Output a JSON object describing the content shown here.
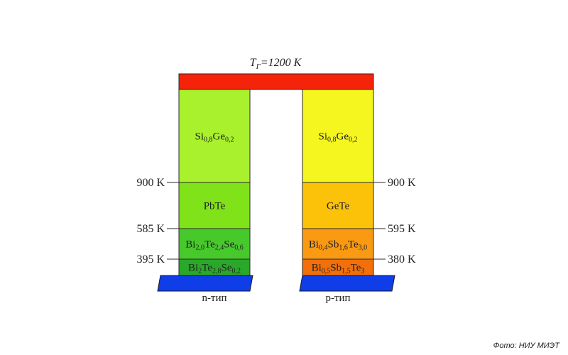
{
  "title": {
    "main": "T",
    "sub": "Г",
    "rest": "=1200 K"
  },
  "hot_junction": {
    "color": "#f5230a"
  },
  "base": {
    "color": "#0f3de8"
  },
  "n_leg": {
    "label": "n-тип",
    "segments": [
      {
        "color": "#a8f12c",
        "parts": [
          [
            "Si",
            ""
          ],
          [
            "0,8",
            "sub"
          ],
          [
            "Ge",
            ""
          ],
          [
            "0,2",
            "sub"
          ]
        ]
      },
      {
        "color": "#80e218",
        "parts": [
          [
            "PbTe",
            ""
          ]
        ]
      },
      {
        "color": "#47c92c",
        "parts": [
          [
            "Bi",
            ""
          ],
          [
            "2,0",
            "sub"
          ],
          [
            "Te",
            ""
          ],
          [
            "2,4",
            "sub"
          ],
          [
            "Se",
            ""
          ],
          [
            "0,6",
            "sub"
          ]
        ]
      },
      {
        "color": "#2aa82a",
        "parts": [
          [
            "Bi",
            ""
          ],
          [
            "2",
            "sub"
          ],
          [
            "Te",
            ""
          ],
          [
            "2,8",
            "sub"
          ],
          [
            "Se",
            ""
          ],
          [
            "0,2",
            "sub"
          ]
        ]
      }
    ],
    "temps": [
      "900 K",
      "585 K",
      "395 K"
    ]
  },
  "p_leg": {
    "label": "p-тип",
    "segments": [
      {
        "color": "#f5f520",
        "parts": [
          [
            "Si",
            ""
          ],
          [
            "0,8",
            "sub"
          ],
          [
            "Ge",
            ""
          ],
          [
            "0,2",
            "sub"
          ]
        ]
      },
      {
        "color": "#fcc20a",
        "parts": [
          [
            "GeTe",
            ""
          ]
        ]
      },
      {
        "color": "#f99a12",
        "parts": [
          [
            "Bi",
            ""
          ],
          [
            "0,4",
            "sub"
          ],
          [
            "Sb",
            ""
          ],
          [
            "1,6",
            "sub"
          ],
          [
            "Te",
            ""
          ],
          [
            "3,0",
            "sub"
          ]
        ]
      },
      {
        "color": "#f26f0a",
        "parts": [
          [
            "Bi",
            ""
          ],
          [
            "0,5",
            "sub"
          ],
          [
            "Sb",
            ""
          ],
          [
            "1,5",
            "sub"
          ],
          [
            "Te",
            ""
          ],
          [
            "3",
            "sub"
          ]
        ]
      }
    ],
    "temps": [
      "900 K",
      "595 K",
      "380 K"
    ]
  },
  "credit": "Фото: НИУ МИЭТ"
}
